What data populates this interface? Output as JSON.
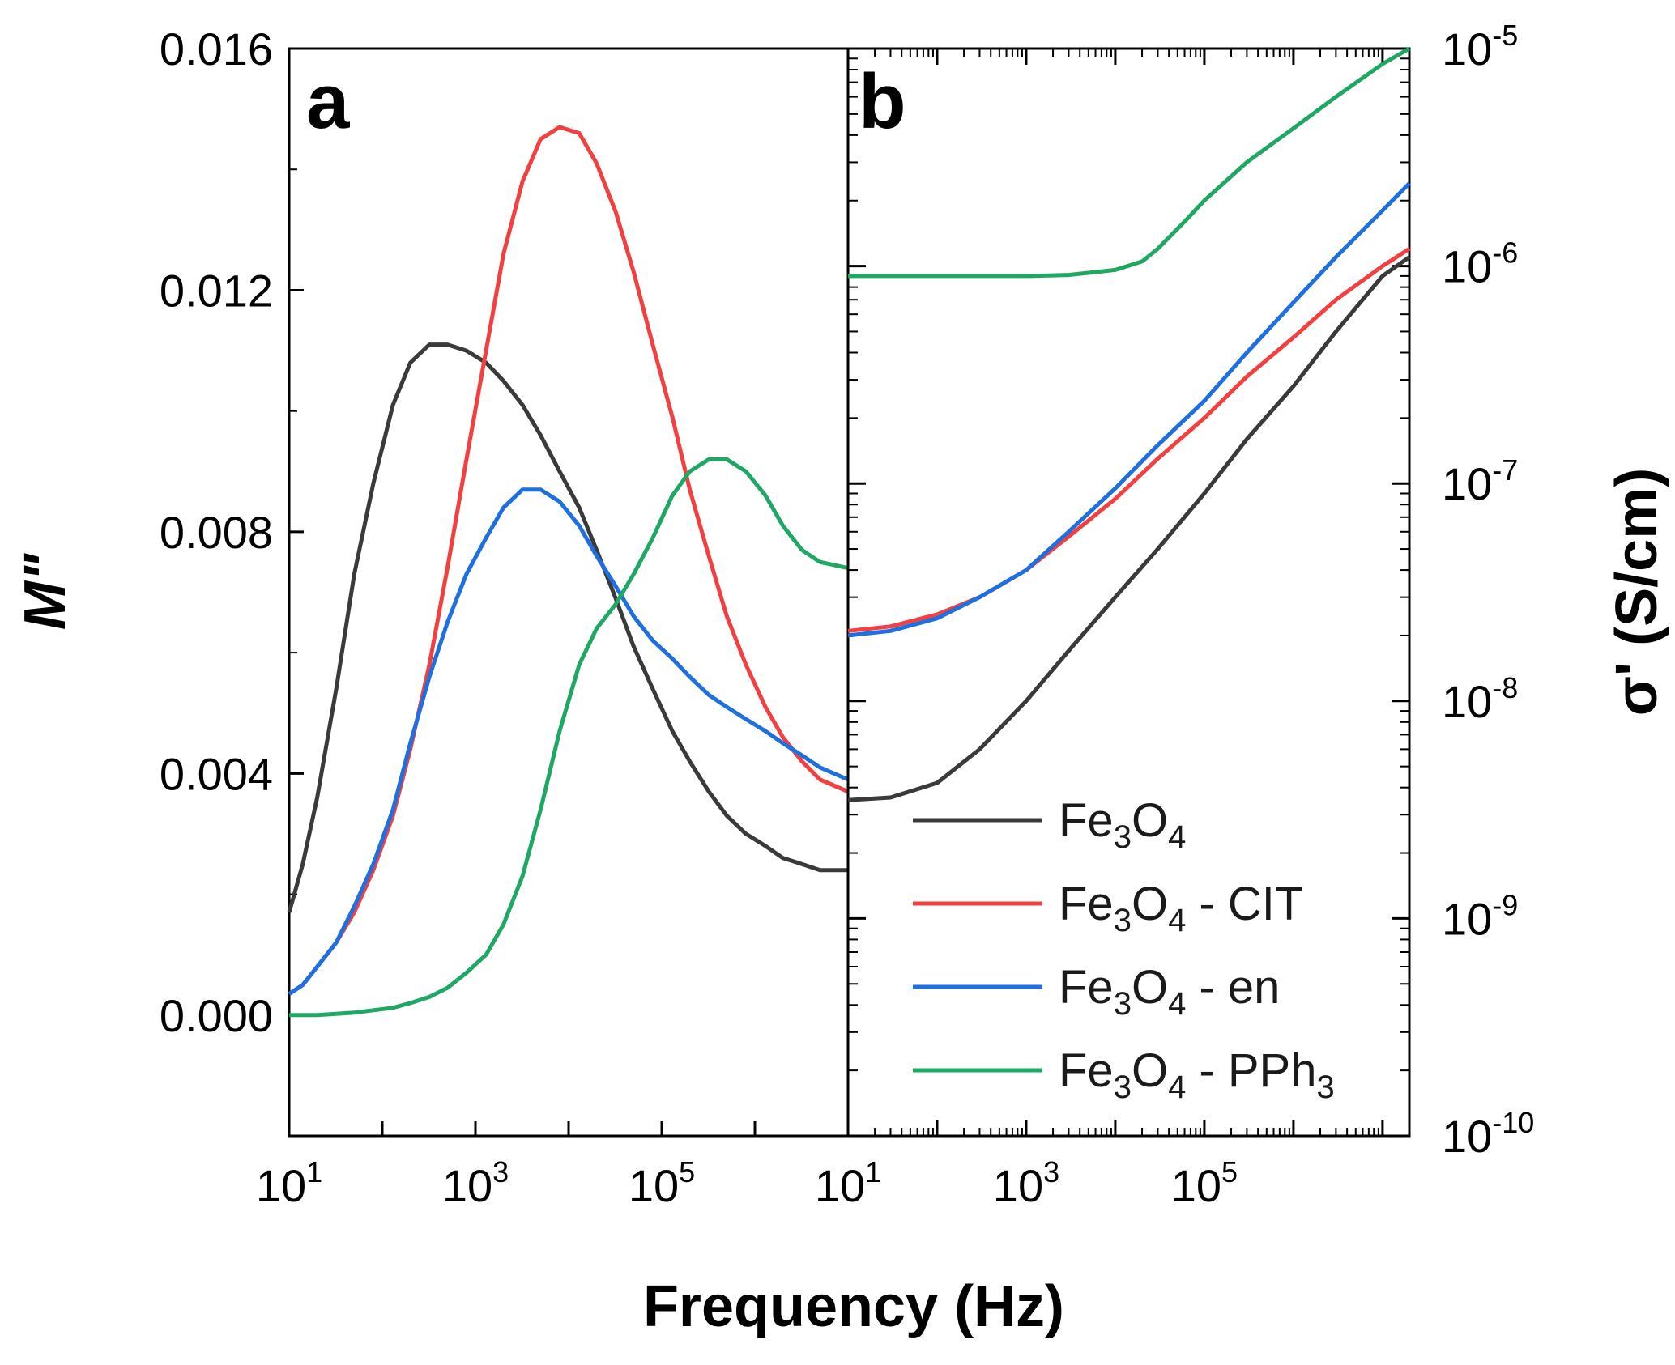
{
  "chart_data": [
    {
      "type": "line",
      "panel": "a",
      "title": "",
      "xlabel": "Frequency (Hz)",
      "ylabel": "M\"",
      "xscale": "log",
      "xlim": [
        10,
        10000000
      ],
      "ylim": [
        -0.002,
        0.016
      ],
      "xticks": [
        {
          "base": "10",
          "exp": "1"
        },
        {
          "base": "10",
          "exp": "3"
        },
        {
          "base": "10",
          "exp": "5"
        }
      ],
      "yticks": [
        "0.000",
        "0.004",
        "0.008",
        "0.012",
        "0.016"
      ],
      "series": [
        {
          "name": "Fe3O4",
          "color": "#3a3a3a",
          "x": [
            10,
            14,
            20,
            32,
            50,
            80,
            130,
            200,
            320,
            500,
            800,
            1300,
            2000,
            3200,
            5000,
            8000,
            13000,
            20000,
            32000,
            50000,
            80000,
            130000,
            200000,
            320000,
            500000,
            800000,
            1300000,
            2000000,
            3200000,
            5000000,
            10000000
          ],
          "y": [
            0.0017,
            0.0025,
            0.0036,
            0.0054,
            0.0073,
            0.0088,
            0.0101,
            0.0108,
            0.0111,
            0.0111,
            0.011,
            0.0108,
            0.0105,
            0.0101,
            0.0096,
            0.009,
            0.0084,
            0.0077,
            0.0069,
            0.0061,
            0.0054,
            0.0047,
            0.0042,
            0.0037,
            0.0033,
            0.003,
            0.0028,
            0.0026,
            0.0025,
            0.0024,
            0.0024
          ]
        },
        {
          "name": "Fe3O4 - CIT",
          "color": "#f24040",
          "x": [
            10,
            14,
            20,
            32,
            50,
            80,
            130,
            200,
            320,
            500,
            800,
            1300,
            2000,
            3200,
            5000,
            8000,
            13000,
            20000,
            32000,
            50000,
            80000,
            130000,
            200000,
            320000,
            500000,
            800000,
            1300000,
            2000000,
            3200000,
            5000000,
            10000000
          ],
          "y": [
            0.00035,
            0.0005,
            0.0008,
            0.0012,
            0.0017,
            0.0024,
            0.0033,
            0.0044,
            0.0058,
            0.0074,
            0.0092,
            0.011,
            0.0126,
            0.0138,
            0.0145,
            0.0147,
            0.0146,
            0.0141,
            0.0133,
            0.0123,
            0.0111,
            0.0099,
            0.0087,
            0.0076,
            0.0066,
            0.0058,
            0.0051,
            0.0046,
            0.0042,
            0.0039,
            0.0037
          ]
        },
        {
          "name": "Fe3O4 - en",
          "color": "#1e6fe0",
          "x": [
            10,
            14,
            20,
            32,
            50,
            80,
            130,
            200,
            320,
            500,
            800,
            1300,
            2000,
            3200,
            5000,
            8000,
            13000,
            20000,
            32000,
            50000,
            80000,
            130000,
            200000,
            320000,
            500000,
            800000,
            1300000,
            2000000,
            3200000,
            5000000,
            10000000
          ],
          "y": [
            0.00035,
            0.0005,
            0.0008,
            0.0012,
            0.0018,
            0.0025,
            0.0034,
            0.0045,
            0.0056,
            0.0065,
            0.0073,
            0.0079,
            0.0084,
            0.0087,
            0.0087,
            0.0085,
            0.0081,
            0.0076,
            0.0071,
            0.0066,
            0.0062,
            0.0059,
            0.0056,
            0.0053,
            0.0051,
            0.0049,
            0.0047,
            0.0045,
            0.0043,
            0.0041,
            0.0039
          ]
        },
        {
          "name": "Fe3O4 - PPh3",
          "color": "#1fa864",
          "x": [
            10,
            14,
            20,
            32,
            50,
            80,
            130,
            200,
            320,
            500,
            800,
            1300,
            2000,
            3200,
            5000,
            8000,
            13000,
            20000,
            32000,
            50000,
            80000,
            130000,
            200000,
            320000,
            500000,
            800000,
            1300000,
            2000000,
            3200000,
            5000000,
            10000000
          ],
          "y": [
            0.0,
            0.0,
            0.0,
            2e-05,
            4e-05,
            8e-05,
            0.00012,
            0.0002,
            0.0003,
            0.00045,
            0.0007,
            0.001,
            0.0015,
            0.0023,
            0.0034,
            0.0047,
            0.0058,
            0.0064,
            0.0068,
            0.0073,
            0.0079,
            0.0086,
            0.009,
            0.0092,
            0.0092,
            0.009,
            0.0086,
            0.0081,
            0.0077,
            0.0075,
            0.0074
          ]
        }
      ]
    },
    {
      "type": "line",
      "panel": "b",
      "title": "",
      "xlabel": "Frequency (Hz)",
      "ylabel": "σ' (S/cm)",
      "xscale": "log",
      "yscale": "log",
      "xlim": [
        10,
        20000000
      ],
      "ylim": [
        1e-10,
        1e-05
      ],
      "xticks": [
        {
          "base": "10",
          "exp": "1"
        },
        {
          "base": "10",
          "exp": "3"
        },
        {
          "base": "10",
          "exp": "5"
        }
      ],
      "yticks": [
        {
          "base": "10",
          "exp": "-10"
        },
        {
          "base": "10",
          "exp": "-9"
        },
        {
          "base": "10",
          "exp": "-8"
        },
        {
          "base": "10",
          "exp": "-7"
        },
        {
          "base": "10",
          "exp": "-6"
        },
        {
          "base": "10",
          "exp": "-5"
        }
      ],
      "series": [
        {
          "name": "Fe3O4",
          "color": "#3a3a3a",
          "x": [
            10,
            30,
            100,
            300,
            1000,
            3000,
            10000,
            30000,
            100000,
            300000,
            1000000,
            3000000,
            10000000,
            20000000
          ],
          "y": [
            3.5e-09,
            3.6e-09,
            4.2e-09,
            6e-09,
            1e-08,
            1.7e-08,
            3e-08,
            5e-08,
            9e-08,
            1.6e-07,
            2.8e-07,
            5e-07,
            9e-07,
            1.1e-06
          ]
        },
        {
          "name": "Fe3O4 - CIT",
          "color": "#f24040",
          "x": [
            10,
            30,
            100,
            300,
            1000,
            3000,
            10000,
            30000,
            100000,
            300000,
            1000000,
            3000000,
            10000000,
            20000000
          ],
          "y": [
            2.1e-08,
            2.2e-08,
            2.5e-08,
            3e-08,
            4e-08,
            5.7e-08,
            8.5e-08,
            1.3e-07,
            2e-07,
            3.1e-07,
            4.7e-07,
            7e-07,
            1e-06,
            1.2e-06
          ]
        },
        {
          "name": "Fe3O4 - en",
          "color": "#1e6fe0",
          "x": [
            10,
            30,
            100,
            300,
            1000,
            3000,
            10000,
            30000,
            100000,
            300000,
            1000000,
            3000000,
            10000000,
            20000000
          ],
          "y": [
            2e-08,
            2.1e-08,
            2.4e-08,
            3e-08,
            4e-08,
            6e-08,
            9.5e-08,
            1.5e-07,
            2.4e-07,
            4e-07,
            6.8e-07,
            1.1e-06,
            1.8e-06,
            2.4e-06
          ]
        },
        {
          "name": "Fe3O4 - PPh3",
          "color": "#1fa864",
          "x": [
            10,
            30,
            100,
            300,
            1000,
            3000,
            10000,
            20000,
            30000,
            60000,
            100000,
            300000,
            1000000,
            3000000,
            10000000,
            20000000
          ],
          "y": [
            9e-07,
            9e-07,
            9e-07,
            9e-07,
            9e-07,
            9.1e-07,
            9.6e-07,
            1.05e-06,
            1.2e-06,
            1.6e-06,
            2e-06,
            3e-06,
            4.3e-06,
            6e-06,
            8.5e-06,
            1e-05
          ]
        }
      ]
    }
  ],
  "panel_labels": {
    "a": "a",
    "b": "b"
  },
  "axis_titles": {
    "x": "Frequency (Hz)",
    "y_left": "M\"",
    "y_right": "σ' (S/cm)"
  },
  "legend": {
    "placement": "bottom-right of panel b",
    "entries": [
      {
        "prefix": "Fe",
        "sub1": "3",
        "mid": "O",
        "sub2": "4",
        "suffix": "",
        "sub3": "",
        "color": "#3a3a3a"
      },
      {
        "prefix": "Fe",
        "sub1": "3",
        "mid": "O",
        "sub2": "4",
        "suffix": " - CIT",
        "sub3": "",
        "color": "#f24040"
      },
      {
        "prefix": "Fe",
        "sub1": "3",
        "mid": "O",
        "sub2": "4",
        "suffix": " - en",
        "sub3": "",
        "color": "#1e6fe0"
      },
      {
        "prefix": "Fe",
        "sub1": "3",
        "mid": "O",
        "sub2": "4",
        "suffix": " - PPh",
        "sub3": "3",
        "color": "#1fa864"
      }
    ]
  }
}
